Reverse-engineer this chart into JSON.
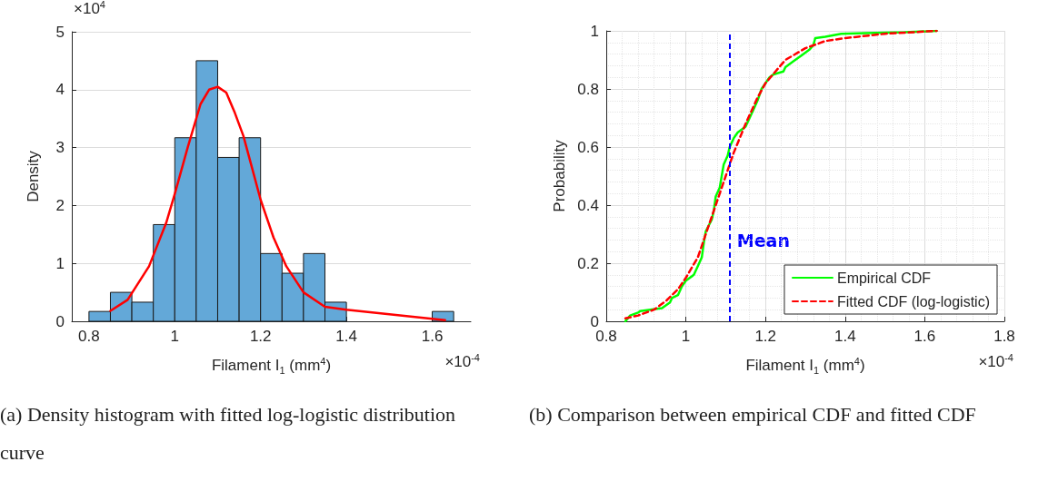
{
  "chart_data": [
    {
      "type": "histogram",
      "title": "(a) Density histogram with fitted log-logistic distribution curve",
      "xlabel": "Filament I$_{1}$ (mm$^{4}$)",
      "ylabel": "Density",
      "annotations": [
        "×10$^{4}$",
        "×10$^{-4}$"
      ],
      "bins": [
        0.8,
        0.85,
        0.9,
        0.95,
        1.0,
        1.05,
        1.1,
        1.15,
        1.2,
        1.25,
        1.3,
        1.35,
        1.4,
        1.45,
        1.5,
        1.55,
        1.6,
        1.65
      ],
      "values": [
        0.17,
        0.5,
        0.33,
        1.67,
        3.17,
        4.5,
        2.83,
        3.17,
        1.17,
        0.83,
        1.17,
        0.33,
        0,
        0,
        0,
        0,
        0.17
      ],
      "color": "#63a8d8",
      "series": [
        {
          "type": "line",
          "color": "#ff0000",
          "x": [
            0.85,
            0.89,
            0.94,
            0.98,
            1.0,
            1.03,
            1.06,
            1.08,
            1.1,
            1.12,
            1.14,
            1.16,
            1.18,
            1.2,
            1.23,
            1.26,
            1.3,
            1.35,
            1.4,
            1.63
          ],
          "values": [
            0.18,
            0.37,
            0.95,
            1.7,
            2.2,
            3.0,
            3.75,
            4.0,
            4.05,
            3.95,
            3.6,
            3.2,
            2.65,
            2.1,
            1.45,
            0.95,
            0.5,
            0.25,
            0.2,
            0.02
          ]
        }
      ],
      "xlim": [
        0.76,
        1.69
      ],
      "xticks": [
        0.8,
        1,
        1.2,
        1.4,
        1.6
      ],
      "ylim": [
        0,
        5
      ],
      "yticks": [
        0,
        1,
        2,
        3,
        4,
        5
      ],
      "grid": "y"
    },
    {
      "type": "line",
      "title": "(b) Comparison between empirical CDF and fitted CDF",
      "xlabel": "Filament I$_{1}$ (mm$^{4}$)",
      "ylabel": "Probability",
      "annotations": [
        "×10$^{-4}$"
      ],
      "series": [
        {
          "name": "Empirical CDF",
          "color": "#00ff00",
          "line_style": "solid",
          "x": [
            0.848,
            0.86,
            0.88,
            0.885,
            0.94,
            0.96,
            0.965,
            0.98,
            0.99,
            1.0,
            1.02,
            1.03,
            1.04,
            1.045,
            1.05,
            1.065,
            1.07,
            1.075,
            1.085,
            1.09,
            1.095,
            1.105,
            1.11,
            1.12,
            1.13,
            1.15,
            1.16,
            1.17,
            1.18,
            1.19,
            1.2,
            1.21,
            1.22,
            1.245,
            1.25,
            1.27,
            1.29,
            1.31,
            1.32,
            1.325,
            1.35,
            1.39,
            1.45,
            1.55,
            1.63
          ],
          "values": [
            0.0,
            0.02,
            0.03,
            0.035,
            0.045,
            0.065,
            0.08,
            0.09,
            0.12,
            0.14,
            0.16,
            0.19,
            0.22,
            0.27,
            0.31,
            0.35,
            0.38,
            0.43,
            0.46,
            0.5,
            0.54,
            0.57,
            0.6,
            0.63,
            0.65,
            0.67,
            0.7,
            0.73,
            0.76,
            0.8,
            0.82,
            0.84,
            0.85,
            0.86,
            0.875,
            0.895,
            0.915,
            0.935,
            0.95,
            0.975,
            0.98,
            0.99,
            0.992,
            0.995,
            1.0
          ]
        },
        {
          "name": "Fitted CDF (log-logistic)",
          "color": "#ff0000",
          "line_style": "dashed",
          "x": [
            0.848,
            0.88,
            0.92,
            0.95,
            0.98,
            1.0,
            1.03,
            1.05,
            1.07,
            1.1,
            1.12,
            1.15,
            1.18,
            1.2,
            1.25,
            1.3,
            1.35,
            1.4,
            1.5,
            1.63
          ],
          "values": [
            0.01,
            0.02,
            0.04,
            0.07,
            0.11,
            0.15,
            0.22,
            0.3,
            0.38,
            0.5,
            0.58,
            0.68,
            0.77,
            0.82,
            0.9,
            0.94,
            0.965,
            0.975,
            0.99,
            1.0
          ]
        }
      ],
      "ref_lines": [
        {
          "axis": "x",
          "value": 1.11,
          "label": "Mean",
          "color": "#0000ff",
          "line_style": "dashed"
        }
      ],
      "xlim": [
        0.8,
        1.8
      ],
      "xticks": [
        0.8,
        1,
        1.2,
        1.4,
        1.6,
        1.8
      ],
      "ylim": [
        0,
        1
      ],
      "yticks": [
        0,
        0.2,
        0.4,
        0.6,
        0.8,
        1
      ],
      "grid": true,
      "legend": "bottom right"
    }
  ]
}
